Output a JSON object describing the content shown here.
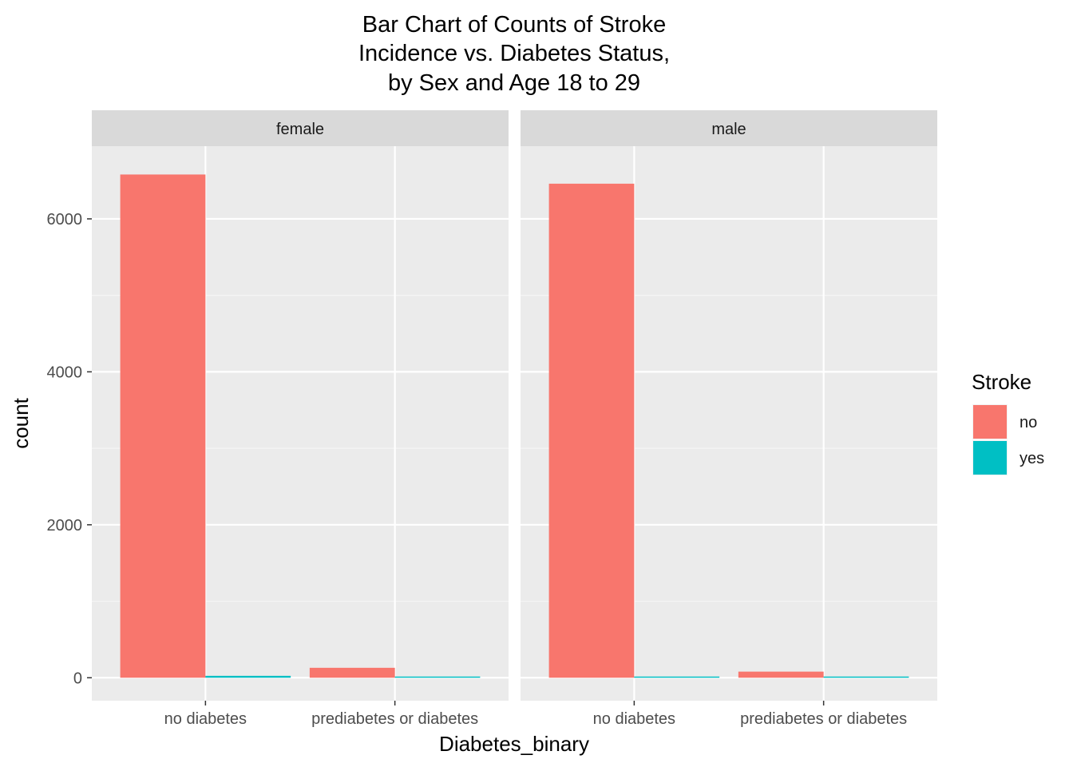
{
  "chart_data": {
    "type": "bar",
    "title_lines": [
      "Bar Chart of Counts of Stroke",
      "Incidence vs. Diabetes Status,",
      "by Sex and Age 18 to 29"
    ],
    "xlabel": "Diabetes_binary",
    "ylabel": "count",
    "ylim": [
      -300,
      6950
    ],
    "y_ticks": [
      0,
      2000,
      4000,
      6000
    ],
    "y_tick_labels": [
      "0",
      "2000",
      "4000",
      "6000"
    ],
    "categories": [
      "no diabetes",
      "prediabetes or diabetes"
    ],
    "grid": true,
    "legend": {
      "title": "Stroke",
      "placement": "right",
      "items": [
        {
          "label": "no",
          "color": "#F8766D"
        },
        {
          "label": "yes",
          "color": "#00BFC4"
        }
      ]
    },
    "facets": [
      {
        "label": "female",
        "series": [
          {
            "name": "no",
            "values": [
              6580,
              130
            ]
          },
          {
            "name": "yes",
            "values": [
              25,
              5
            ]
          }
        ]
      },
      {
        "label": "male",
        "series": [
          {
            "name": "no",
            "values": [
              6460,
              80
            ]
          },
          {
            "name": "yes",
            "values": [
              15,
              5
            ]
          }
        ]
      }
    ]
  }
}
